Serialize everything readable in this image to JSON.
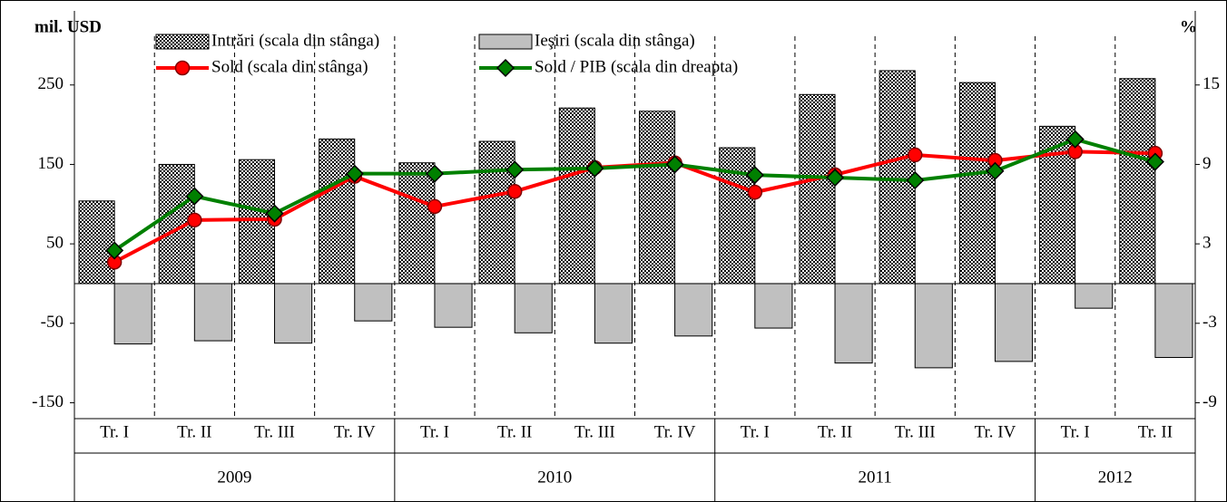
{
  "chart_data": {
    "type": "bar",
    "y_label": "mil. USD",
    "y2_label": "%",
    "categories": [
      "Tr. I",
      "Tr. II",
      "Tr. III",
      "Tr. IV",
      "Tr. I",
      "Tr. II",
      "Tr. III",
      "Tr. IV",
      "Tr. I",
      "Tr. II",
      "Tr. III",
      "Tr. IV",
      "Tr. I",
      "Tr. II"
    ],
    "groups": [
      {
        "label": "2009",
        "count": 4
      },
      {
        "label": "2010",
        "count": 4
      },
      {
        "label": "2011",
        "count": 4
      },
      {
        "label": "2012",
        "count": 2
      }
    ],
    "series": [
      {
        "name": "Intrări (scala din stânga)",
        "type": "bar",
        "color": "#000000",
        "values": [
          104,
          150,
          156,
          182,
          152,
          179,
          221,
          217,
          171,
          238,
          268,
          253,
          198,
          258
        ]
      },
      {
        "name": "Ieşiri (scala din stânga)",
        "type": "bar",
        "color": "#c0c0c0",
        "values": [
          -76,
          -72,
          -75,
          -47,
          -55,
          -62,
          -75,
          -66,
          -56,
          -100,
          -106,
          -98,
          -31,
          -93
        ]
      },
      {
        "name": "Sold (scala din stânga)",
        "type": "line",
        "color": "#ff0000",
        "values": [
          27,
          80,
          81,
          135,
          97,
          116,
          146,
          152,
          115,
          137,
          162,
          155,
          166,
          164
        ]
      },
      {
        "name": "Sold / PIB (scala din dreapta)",
        "type": "line",
        "color": "#008000",
        "axis": "y2",
        "values": [
          2.5,
          6.6,
          5.3,
          8.3,
          8.3,
          8.6,
          8.7,
          9.0,
          8.2,
          8.0,
          7.8,
          8.5,
          10.9,
          9.2
        ]
      }
    ],
    "ylim": [
      -170,
      320
    ],
    "yticks": [
      -150,
      -50,
      50,
      150,
      250
    ],
    "y2lim": [
      -10.2,
      19.2
    ],
    "y2ticks": [
      -9,
      -3,
      3,
      9,
      15
    ]
  }
}
